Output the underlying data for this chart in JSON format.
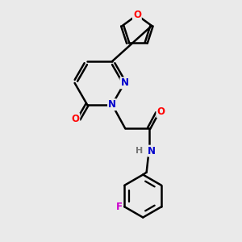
{
  "bg_color": "#eaeaea",
  "bond_color": "#000000",
  "atom_colors": {
    "N": "#0000cc",
    "O": "#ff0000",
    "F": "#cc00cc",
    "H": "#777777",
    "C": "#000000"
  },
  "bond_width": 1.8,
  "fig_size": [
    3.0,
    3.0
  ],
  "dpi": 100
}
